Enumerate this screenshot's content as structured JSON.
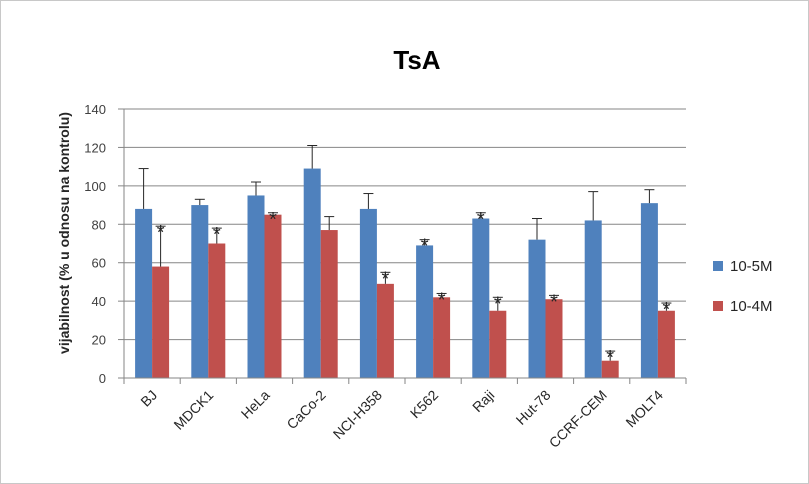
{
  "chart_data": {
    "type": "bar",
    "title": "TsA",
    "xlabel": "",
    "ylabel": "vijabilnost (% u odnosu na kontrolu)",
    "ylim": [
      0,
      140
    ],
    "yticks": [
      0,
      20,
      40,
      60,
      80,
      100,
      120,
      140
    ],
    "grid": true,
    "legend_position": "right",
    "categories": [
      "BJ",
      "MDCK1",
      "HeLa",
      "CaCo-2",
      "NCI-H358",
      "K562",
      "Raji",
      "Hut-78",
      "CCRF-CEM",
      "MOLT4"
    ],
    "significance_marker": "*",
    "series": [
      {
        "name": "10-5M",
        "color": "#4f81bd",
        "values": [
          88,
          90,
          95,
          109,
          88,
          69,
          83,
          72,
          82,
          91
        ],
        "error": [
          21,
          3,
          7,
          12,
          8,
          3,
          3,
          11,
          15,
          7
        ],
        "significant": [
          false,
          false,
          false,
          false,
          false,
          true,
          true,
          false,
          false,
          false
        ]
      },
      {
        "name": "10-4M",
        "color": "#c0504d",
        "values": [
          58,
          70,
          85,
          77,
          49,
          42,
          35,
          41,
          9,
          35
        ],
        "error": [
          21,
          8,
          1,
          7,
          6,
          2,
          7,
          2,
          5,
          4
        ],
        "significant": [
          true,
          true,
          true,
          false,
          true,
          true,
          true,
          true,
          true,
          true
        ]
      }
    ]
  }
}
